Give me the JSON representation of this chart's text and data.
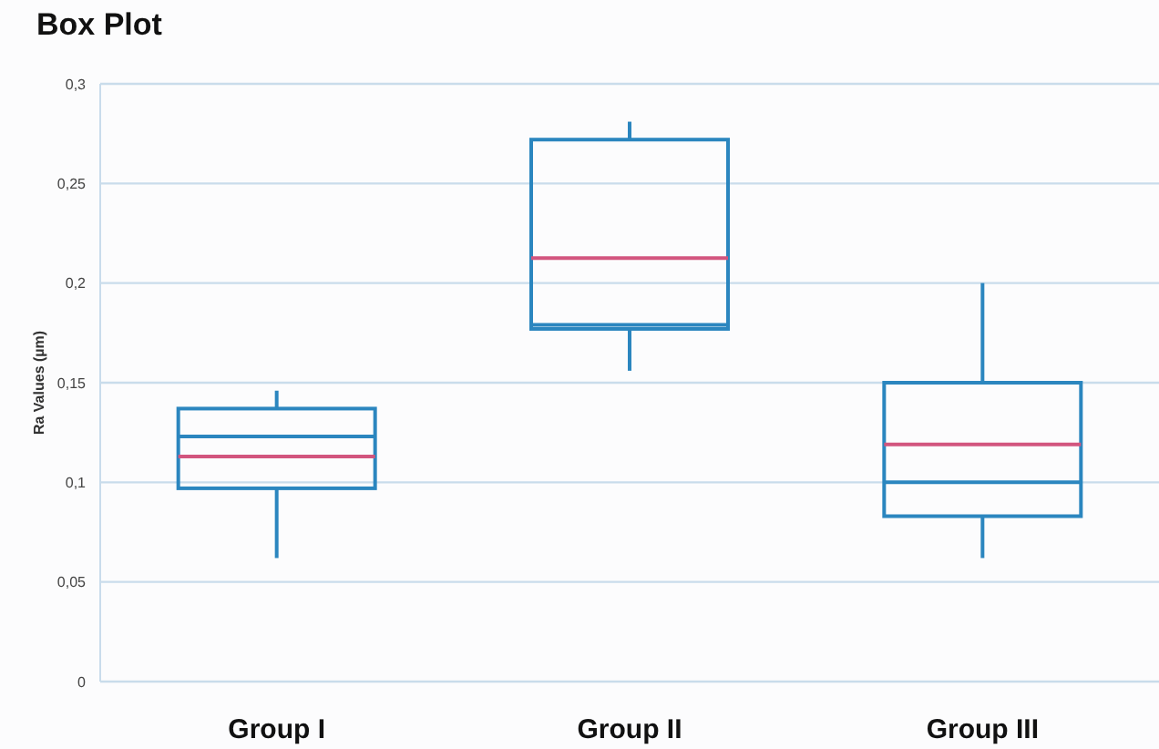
{
  "chart_data": {
    "type": "box",
    "title": "Box Plot",
    "ylabel": "Ra Values (µm)",
    "categories": [
      "Group I",
      "Group II",
      "Group III"
    ],
    "series": [
      {
        "color": "#2b86bf",
        "boxes": [
          {
            "low": 0.062,
            "q1": 0.097,
            "median": 0.123,
            "q3": 0.137,
            "high": 0.146,
            "mean": 0.113
          },
          {
            "low": 0.156,
            "q1": 0.177,
            "median": 0.179,
            "q3": 0.272,
            "high": 0.281,
            "mean": 0.2125
          },
          {
            "low": 0.062,
            "q1": 0.083,
            "median": 0.1,
            "q3": 0.15,
            "high": 0.2,
            "mean": 0.119
          }
        ]
      }
    ],
    "ylim": [
      0,
      0.3
    ],
    "yticks": [
      0,
      {
        "value": 0.05,
        "label": "0,05"
      },
      {
        "value": 0.1,
        "label": "0,1"
      },
      {
        "value": 0.15,
        "label": "0,15"
      },
      {
        "value": 0.2,
        "label": "0,2"
      },
      {
        "value": 0.25,
        "label": "0,25"
      },
      {
        "value": 0.3,
        "label": "0,3"
      }
    ],
    "grid": "y"
  }
}
